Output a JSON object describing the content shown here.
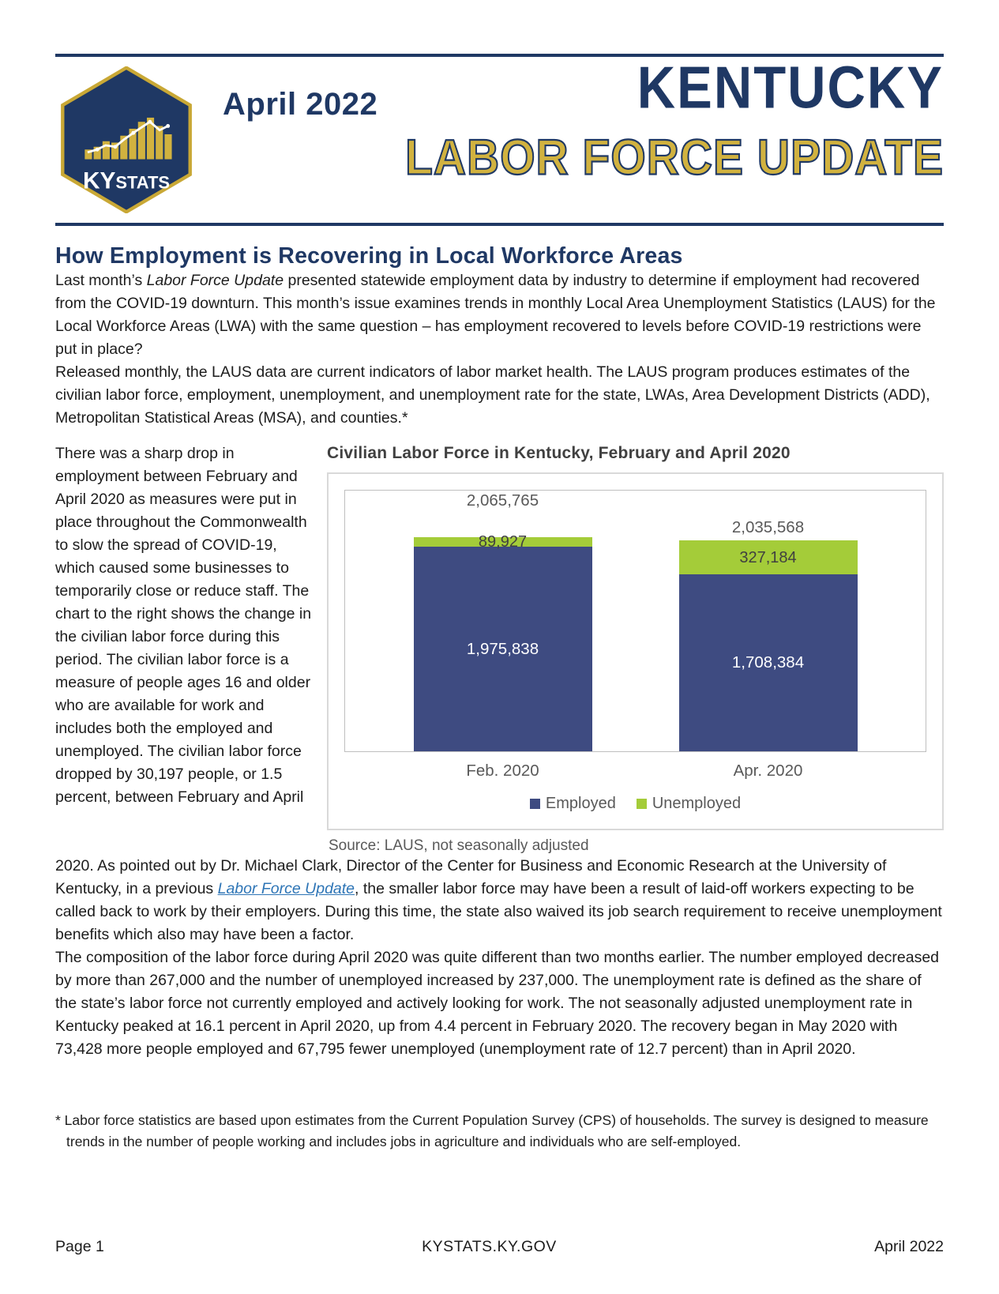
{
  "header": {
    "issue_date": "April 2022",
    "title_line1": "KENTUCKY",
    "title_line2": "LABOR FORCE UPDATE",
    "logo": {
      "ky": "KY",
      "stats": "STATS"
    }
  },
  "colors": {
    "navy": "#1F3864",
    "gold": "#D1B23F",
    "bar_navy": "#3E4B81",
    "bar_green": "#A4CC39",
    "gray_text": "#595959",
    "link_blue": "#2E75B6"
  },
  "article": {
    "heading": "How Employment is Recovering in Local Workforce Areas",
    "p1_pre": "Last month’s ",
    "p1_italic": "Labor Force Update",
    "p1_post": " presented statewide employment data by industry to determine if employment had recovered from the COVID-19 downturn. This month’s issue examines trends in monthly Local Area Unemployment Statistics (LAUS) for the Local Workforce Areas (LWA) with the same question – has employment recovered to levels before COVID-19 restrictions were put in place?",
    "p2": "Released monthly, the LAUS data are current indicators of labor market health. The LAUS program produces estimates of the civilian labor force, employment, unemployment, and unemployment rate for the state, LWAs, Area Development Districts (ADD), Metropolitan Statistical Areas (MSA), and counties.*",
    "left_column": "There was a sharp drop in employment between February and April 2020 as measures were put in place throughout the Commonwealth to slow the spread of COVID-19, which caused some businesses to temporarily close or reduce staff. The chart to the right shows the change in the civilian labor force during this period. The civilian labor force is a measure of people ages 16 and older who are available for work and includes both the employed and unemployed. The civilian labor force dropped by 30,197 people, or 1.5 percent, between February and April",
    "p3_pre": "2020. As pointed out by Dr. Michael Clark, Director of the Center for Business and Economic Research at the University of Kentucky, in a previous ",
    "p3_link": "Labor Force Update",
    "p3_post": ", the smaller labor force may have been a result of laid-off workers expecting to be called back to work by their employers. During this time, the state also waived its job search requirement to receive unemployment benefits which also may have been a factor.",
    "p4": "The composition of the labor force during April 2020 was quite different than two months earlier. The number employed decreased by more than 267,000 and the number of unemployed increased by 237,000. The unemployment rate is defined as the share of the state’s labor force not currently employed and actively looking for work. The not seasonally adjusted unemployment rate in Kentucky peaked at 16.1 percent in April 2020, up from 4.4 percent in February 2020. The recovery began in May 2020 with 73,428 more people employed and 67,795 fewer unemployed (unemployment rate of 12.7 percent) than in April 2020.",
    "footnote": "* Labor force statistics are based upon estimates from the Current Population Survey (CPS) of households. The survey is designed to measure trends in the number of people working and includes jobs in agriculture and individuals who are self-employed."
  },
  "chart_data": {
    "type": "bar",
    "stacked": true,
    "title": "Civilian Labor Force in Kentucky, February and April 2020",
    "categories": [
      "Feb. 2020",
      "Apr. 2020"
    ],
    "series": [
      {
        "name": "Employed",
        "color": "#3E4B81",
        "values": [
          1975838,
          1708384
        ]
      },
      {
        "name": "Unemployed",
        "color": "#A4CC39",
        "values": [
          89927,
          327184
        ]
      }
    ],
    "totals": [
      2065765,
      2035568
    ],
    "total_labels": [
      "2,065,765",
      "2,035,568"
    ],
    "employed_labels": [
      "1,975,838",
      "1,708,384"
    ],
    "unemployed_labels": [
      "89,927",
      "327,184"
    ],
    "ylim": [
      0,
      2065765
    ],
    "grid": false,
    "legend_position": "bottom",
    "source": "Source: LAUS, not seasonally adjusted"
  },
  "footer": {
    "page": "Page 1",
    "center": "KYSTATS.KY.GOV",
    "right": "April 2022"
  }
}
